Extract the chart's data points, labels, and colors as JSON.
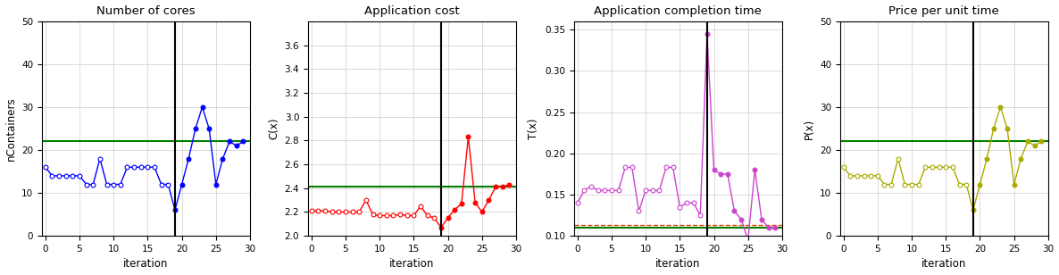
{
  "subplot1": {
    "title": "Number of cores",
    "ylabel": "nContainers",
    "xlabel": "iteration",
    "ylim": [
      0,
      50
    ],
    "xlim": [
      -0.5,
      30
    ],
    "yticks": [
      0,
      10,
      20,
      30,
      40,
      50
    ],
    "vline": 19,
    "hline": 22,
    "color": "blue",
    "y": [
      16,
      14,
      14,
      14,
      14,
      14,
      12,
      12,
      18,
      12,
      12,
      12,
      16,
      16,
      16,
      16,
      16,
      12,
      12,
      6,
      12,
      18,
      25,
      30,
      25,
      12,
      18,
      22,
      21,
      22
    ],
    "filled_after": 19,
    "has_hline2": false
  },
  "subplot2": {
    "title": "Application cost",
    "ylabel": "C(x)",
    "xlabel": "iteration",
    "ylim": [
      2.0,
      3.8
    ],
    "xlim": [
      -0.5,
      30
    ],
    "yticks": [
      2.0,
      2.2,
      2.4,
      2.6,
      2.8,
      3.0,
      3.2,
      3.4,
      3.6
    ],
    "vline": 19,
    "hline": 2.41,
    "color": "red",
    "y": [
      2.21,
      2.21,
      2.21,
      2.2,
      2.2,
      2.2,
      2.2,
      2.2,
      2.3,
      2.18,
      2.17,
      2.17,
      2.17,
      2.18,
      2.17,
      2.17,
      2.25,
      2.17,
      2.15,
      2.07,
      2.15,
      2.22,
      2.27,
      2.83,
      2.28,
      2.2,
      2.3,
      2.41,
      2.41,
      2.43
    ],
    "filled_after": 19,
    "has_hline2": false
  },
  "subplot3": {
    "title": "Application completion time",
    "ylabel": "T(x)",
    "xlabel": "iteration",
    "ylim": [
      0.1,
      0.36
    ],
    "xlim": [
      -0.5,
      30
    ],
    "yticks": [
      0.1,
      0.15,
      0.2,
      0.25,
      0.3,
      0.35
    ],
    "vline": 19,
    "hline": 0.11,
    "hline2": 0.113,
    "color": "#cc44cc",
    "y": [
      0.14,
      0.155,
      0.16,
      0.155,
      0.155,
      0.155,
      0.155,
      0.183,
      0.183,
      0.13,
      0.155,
      0.155,
      0.155,
      0.183,
      0.183,
      0.135,
      0.14,
      0.14,
      0.125,
      0.345,
      0.18,
      0.175,
      0.175,
      0.13,
      0.12,
      0.095,
      0.18,
      0.12,
      0.11,
      0.11
    ],
    "filled_after": 19,
    "has_hline2": true
  },
  "subplot4": {
    "title": "Price per unit time",
    "ylabel": "P(x)",
    "xlabel": "iteration",
    "ylim": [
      0,
      50
    ],
    "xlim": [
      -0.5,
      30
    ],
    "yticks": [
      0,
      10,
      20,
      30,
      40,
      50
    ],
    "vline": 19,
    "hline": 22,
    "color": "#aaaa00",
    "y": [
      16,
      14,
      14,
      14,
      14,
      14,
      12,
      12,
      18,
      12,
      12,
      12,
      16,
      16,
      16,
      16,
      16,
      12,
      12,
      6,
      12,
      18,
      25,
      30,
      25,
      12,
      18,
      22,
      21,
      22
    ],
    "filled_after": 19,
    "has_hline2": false
  }
}
